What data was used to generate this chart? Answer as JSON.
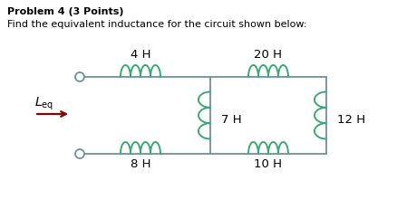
{
  "title_bold": "Problem 4 (3 Points)",
  "title_sub": "Find the equivalent inductance for the circuit shown below:",
  "bg_color": "#ffffff",
  "wire_color": "#7090a0",
  "coil_color": "#3aaa72",
  "arrow_color": "#8b0000",
  "text_color": "#000000",
  "labels": {
    "top_left": "4 H",
    "top_right": "20 H",
    "middle": "7 H",
    "bottom_left": "8 H",
    "bottom_right": "10 H",
    "right": "12 H"
  }
}
